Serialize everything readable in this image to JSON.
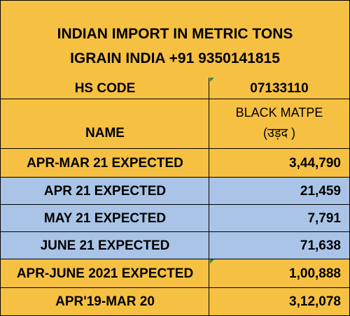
{
  "title": {
    "line1": "INDIAN IMPORT IN METRIC TONS",
    "line2": "IGRAIN INDIA +91 9350141815"
  },
  "hs_code": {
    "label": "HS CODE",
    "value": "07133110"
  },
  "name_row": {
    "label": "NAME",
    "value_line1": "BLACK MATPE",
    "value_line2": "(उड़द )"
  },
  "rows": [
    {
      "label": "APR-MAR 21 EXPECTED",
      "value": "3,44,790"
    },
    {
      "label": "APR 21 EXPECTED",
      "value": "21,459"
    },
    {
      "label": "MAY 21 EXPECTED",
      "value": "7,791"
    },
    {
      "label": "JUNE 21 EXPECTED",
      "value": "71,638"
    },
    {
      "label": "APR-JUNE 2021 EXPECTED",
      "value": "1,00,888"
    },
    {
      "label": "APR'19-MAR 20",
      "value": "3,12,078"
    }
  ],
  "colors": {
    "orange": "#f6c142",
    "blue": "#a9c4e6",
    "tick_green": "#2e8b3a"
  }
}
